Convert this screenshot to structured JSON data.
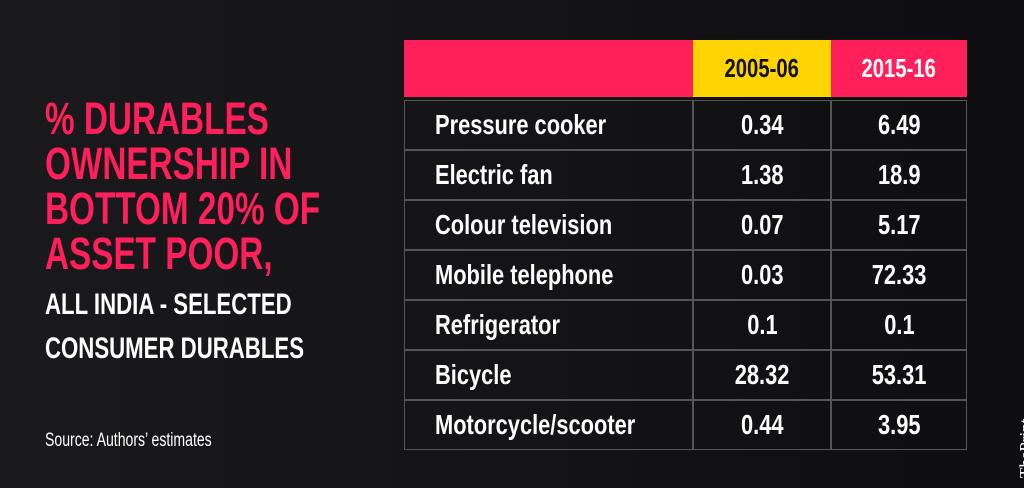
{
  "title_lines": [
    "% DURABLES",
    "OWNERSHIP IN",
    "BOTTOM 20% OF",
    "ASSET POOR,"
  ],
  "subtitle_lines": [
    "ALL INDIA - SELECTED",
    "CONSUMER DURABLES"
  ],
  "source": "Source: Authors’ estimates",
  "brand": "ThePrint",
  "table": {
    "headers": [
      "2005-06",
      "2015-16"
    ],
    "rows": [
      [
        "Pressure cooker",
        0.34,
        6.49
      ],
      [
        "Electric fan",
        1.38,
        18.9
      ],
      [
        "Colour television",
        0.07,
        5.17
      ],
      [
        "Mobile telephone",
        0.03,
        72.33
      ],
      [
        "Refrigerator",
        0.1,
        0.1
      ],
      [
        "Bicycle",
        28.32,
        53.31
      ],
      [
        "Motorcycle/scooter",
        0.44,
        3.95
      ]
    ]
  }
}
